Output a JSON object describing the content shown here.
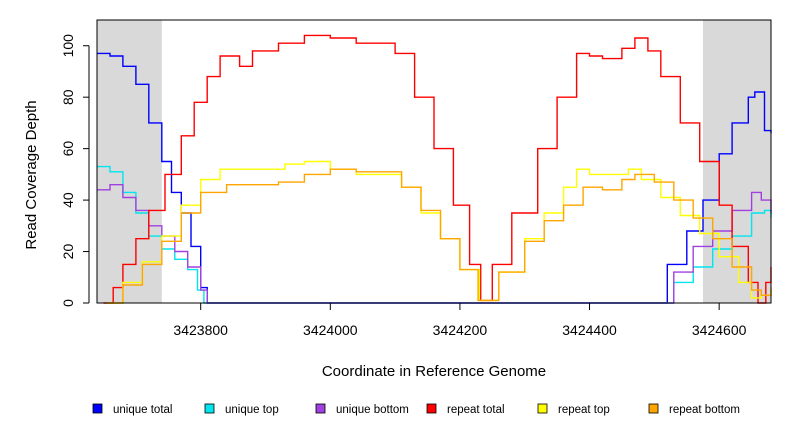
{
  "chart_data": {
    "type": "line",
    "xlabel": "Coordinate in Reference Genome",
    "ylabel": "Read Coverage Depth",
    "xlim": [
      3423640,
      3424680
    ],
    "ylim": [
      0,
      110
    ],
    "xticks": [
      3423800,
      3424000,
      3424200,
      3424400,
      3424600
    ],
    "yticks": [
      0,
      20,
      40,
      60,
      80,
      100
    ],
    "grid": false,
    "legend_position": "bottom",
    "shaded_regions": [
      {
        "x": [
          3423640,
          3423740
        ],
        "color": "#d9d9d9"
      },
      {
        "x": [
          3424575,
          3424680
        ],
        "color": "#d9d9d9"
      }
    ],
    "series": [
      {
        "name": "unique total",
        "color": "#0000ff",
        "points": [
          [
            3423640,
            97
          ],
          [
            3423660,
            96
          ],
          [
            3423680,
            92
          ],
          [
            3423700,
            85
          ],
          [
            3423720,
            70
          ],
          [
            3423740,
            55
          ],
          [
            3423755,
            43
          ],
          [
            3423770,
            35
          ],
          [
            3423785,
            22
          ],
          [
            3423800,
            6
          ],
          [
            3423810,
            0
          ],
          [
            3424500,
            0
          ],
          [
            3424520,
            15
          ],
          [
            3424550,
            28
          ],
          [
            3424575,
            40
          ],
          [
            3424600,
            58
          ],
          [
            3424620,
            70
          ],
          [
            3424645,
            80
          ],
          [
            3424655,
            82
          ],
          [
            3424670,
            67
          ],
          [
            3424680,
            66
          ]
        ]
      },
      {
        "name": "unique top",
        "color": "#00e5ee",
        "points": [
          [
            3423640,
            53
          ],
          [
            3423660,
            51
          ],
          [
            3423680,
            43
          ],
          [
            3423700,
            35
          ],
          [
            3423720,
            26
          ],
          [
            3423740,
            21
          ],
          [
            3423760,
            17
          ],
          [
            3423780,
            13
          ],
          [
            3423795,
            5
          ],
          [
            3423805,
            0
          ],
          [
            3424505,
            0
          ],
          [
            3424530,
            8
          ],
          [
            3424560,
            14
          ],
          [
            3424590,
            21
          ],
          [
            3424620,
            26
          ],
          [
            3424650,
            35
          ],
          [
            3424670,
            36
          ],
          [
            3424680,
            33
          ]
        ]
      },
      {
        "name": "unique bottom",
        "color": "#a040e0",
        "points": [
          [
            3423640,
            44
          ],
          [
            3423660,
            46
          ],
          [
            3423680,
            41
          ],
          [
            3423700,
            36
          ],
          [
            3423720,
            30
          ],
          [
            3423740,
            26
          ],
          [
            3423760,
            20
          ],
          [
            3423780,
            14
          ],
          [
            3423800,
            5
          ],
          [
            3423810,
            0
          ],
          [
            3424505,
            0
          ],
          [
            3424530,
            12
          ],
          [
            3424560,
            22
          ],
          [
            3424590,
            28
          ],
          [
            3424620,
            36
          ],
          [
            3424650,
            43
          ],
          [
            3424665,
            40
          ],
          [
            3424680,
            35
          ]
        ]
      },
      {
        "name": "repeat total",
        "color": "#ff0000",
        "points": [
          [
            3423650,
            0
          ],
          [
            3423665,
            6
          ],
          [
            3423680,
            15
          ],
          [
            3423700,
            25
          ],
          [
            3423720,
            36
          ],
          [
            3423745,
            50
          ],
          [
            3423770,
            65
          ],
          [
            3423790,
            78
          ],
          [
            3423810,
            88
          ],
          [
            3423830,
            96
          ],
          [
            3423860,
            92
          ],
          [
            3423880,
            98
          ],
          [
            3423920,
            101
          ],
          [
            3423960,
            104
          ],
          [
            3424000,
            103
          ],
          [
            3424040,
            101
          ],
          [
            3424080,
            101
          ],
          [
            3424100,
            97
          ],
          [
            3424130,
            80
          ],
          [
            3424160,
            60
          ],
          [
            3424190,
            38
          ],
          [
            3424215,
            15
          ],
          [
            3424232,
            1
          ],
          [
            3424250,
            15
          ],
          [
            3424280,
            35
          ],
          [
            3424320,
            60
          ],
          [
            3424350,
            80
          ],
          [
            3424380,
            97
          ],
          [
            3424400,
            96
          ],
          [
            3424420,
            95
          ],
          [
            3424450,
            99
          ],
          [
            3424470,
            103
          ],
          [
            3424490,
            98
          ],
          [
            3424510,
            88
          ],
          [
            3424540,
            70
          ],
          [
            3424570,
            55
          ],
          [
            3424600,
            38
          ],
          [
            3424620,
            22
          ],
          [
            3424645,
            8
          ],
          [
            3424660,
            0
          ],
          [
            3424672,
            8
          ],
          [
            3424680,
            14
          ]
        ]
      },
      {
        "name": "repeat top",
        "color": "#ffff00",
        "points": [
          [
            3423655,
            0
          ],
          [
            3423680,
            8
          ],
          [
            3423710,
            16
          ],
          [
            3423740,
            26
          ],
          [
            3423770,
            38
          ],
          [
            3423800,
            48
          ],
          [
            3423830,
            52
          ],
          [
            3423880,
            52
          ],
          [
            3423930,
            54
          ],
          [
            3423960,
            55
          ],
          [
            3424000,
            52
          ],
          [
            3424040,
            50
          ],
          [
            3424080,
            50
          ],
          [
            3424110,
            45
          ],
          [
            3424140,
            35
          ],
          [
            3424170,
            25
          ],
          [
            3424200,
            13
          ],
          [
            3424230,
            1
          ],
          [
            3424260,
            12
          ],
          [
            3424300,
            25
          ],
          [
            3424330,
            35
          ],
          [
            3424360,
            45
          ],
          [
            3424380,
            52
          ],
          [
            3424400,
            50
          ],
          [
            3424430,
            50
          ],
          [
            3424460,
            52
          ],
          [
            3424480,
            48
          ],
          [
            3424510,
            41
          ],
          [
            3424540,
            34
          ],
          [
            3424570,
            27
          ],
          [
            3424600,
            18
          ],
          [
            3424630,
            8
          ],
          [
            3424650,
            2
          ],
          [
            3424665,
            3
          ],
          [
            3424680,
            5
          ]
        ]
      },
      {
        "name": "repeat bottom",
        "color": "#ffa500",
        "points": [
          [
            3423655,
            0
          ],
          [
            3423680,
            7
          ],
          [
            3423710,
            15
          ],
          [
            3423740,
            24
          ],
          [
            3423770,
            35
          ],
          [
            3423800,
            43
          ],
          [
            3423840,
            46
          ],
          [
            3423880,
            46
          ],
          [
            3423920,
            47
          ],
          [
            3423960,
            50
          ],
          [
            3424000,
            52
          ],
          [
            3424040,
            51
          ],
          [
            3424080,
            51
          ],
          [
            3424110,
            45
          ],
          [
            3424140,
            36
          ],
          [
            3424170,
            25
          ],
          [
            3424200,
            13
          ],
          [
            3424228,
            1
          ],
          [
            3424260,
            12
          ],
          [
            3424300,
            24
          ],
          [
            3424330,
            32
          ],
          [
            3424360,
            38
          ],
          [
            3424390,
            45
          ],
          [
            3424420,
            44
          ],
          [
            3424450,
            48
          ],
          [
            3424470,
            50
          ],
          [
            3424500,
            47
          ],
          [
            3424530,
            40
          ],
          [
            3424560,
            33
          ],
          [
            3424590,
            25
          ],
          [
            3424620,
            14
          ],
          [
            3424650,
            5
          ],
          [
            3424665,
            3
          ],
          [
            3424680,
            6
          ]
        ]
      }
    ]
  }
}
